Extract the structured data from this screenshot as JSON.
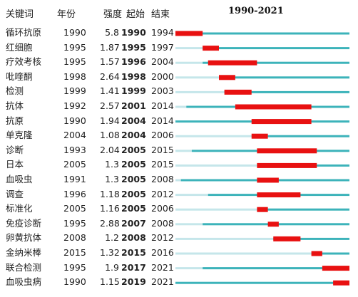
{
  "header": {
    "keyword": "关键词",
    "year": "年份",
    "strength": "强度",
    "begin": "起始",
    "end": "结束",
    "span": "1990-2021"
  },
  "colors": {
    "burst": "#e81111",
    "active": "#3cb3ba",
    "inactive": "#c5e6ea"
  },
  "chart_data": {
    "type": "table",
    "title": "1990-2021",
    "timeline_range": [
      1990,
      2021
    ],
    "columns": [
      "关键词",
      "年份",
      "强度",
      "起始",
      "结束"
    ],
    "rows": [
      {
        "keyword": "循环抗原",
        "year": "1990",
        "strength": "5.8",
        "begin": "1990",
        "end": "1994"
      },
      {
        "keyword": "红细胞",
        "year": "1995",
        "strength": "1.87",
        "begin": "1995",
        "end": "1997"
      },
      {
        "keyword": "疗效考核",
        "year": "1995",
        "strength": "1.57",
        "begin": "1996",
        "end": "2004"
      },
      {
        "keyword": "吡喹酮",
        "year": "1998",
        "strength": "2.64",
        "begin": "1998",
        "end": "2000"
      },
      {
        "keyword": "检测",
        "year": "1999",
        "strength": "1.41",
        "begin": "1999",
        "end": "2003"
      },
      {
        "keyword": "抗体",
        "year": "1992",
        "strength": "2.57",
        "begin": "2001",
        "end": "2014"
      },
      {
        "keyword": "抗原",
        "year": "1990",
        "strength": "1.94",
        "begin": "2004",
        "end": "2014"
      },
      {
        "keyword": "单克隆",
        "year": "2004",
        "strength": "1.08",
        "begin": "2004",
        "end": "2006"
      },
      {
        "keyword": "诊断",
        "year": "1993",
        "strength": "2.04",
        "begin": "2005",
        "end": "2015"
      },
      {
        "keyword": "日本",
        "year": "2005",
        "strength": "1.3",
        "begin": "2005",
        "end": "2015"
      },
      {
        "keyword": "血吸虫",
        "year": "1991",
        "strength": "1.3",
        "begin": "2005",
        "end": "2008"
      },
      {
        "keyword": "调查",
        "year": "1996",
        "strength": "1.18",
        "begin": "2005",
        "end": "2012"
      },
      {
        "keyword": "标准化",
        "year": "2005",
        "strength": "1.16",
        "begin": "2005",
        "end": "2006"
      },
      {
        "keyword": "免疫诊断",
        "year": "1995",
        "strength": "2.88",
        "begin": "2007",
        "end": "2008"
      },
      {
        "keyword": "卵黄抗体",
        "year": "2008",
        "strength": "1.2",
        "begin": "2008",
        "end": "2012"
      },
      {
        "keyword": "金纳米棒",
        "year": "2015",
        "strength": "1.32",
        "begin": "2015",
        "end": "2016"
      },
      {
        "keyword": "联合检测",
        "year": "1995",
        "strength": "1.9",
        "begin": "2017",
        "end": "2021"
      },
      {
        "keyword": "血吸虫病",
        "year": "1990",
        "strength": "1.15",
        "begin": "2019",
        "end": "2021"
      }
    ]
  }
}
